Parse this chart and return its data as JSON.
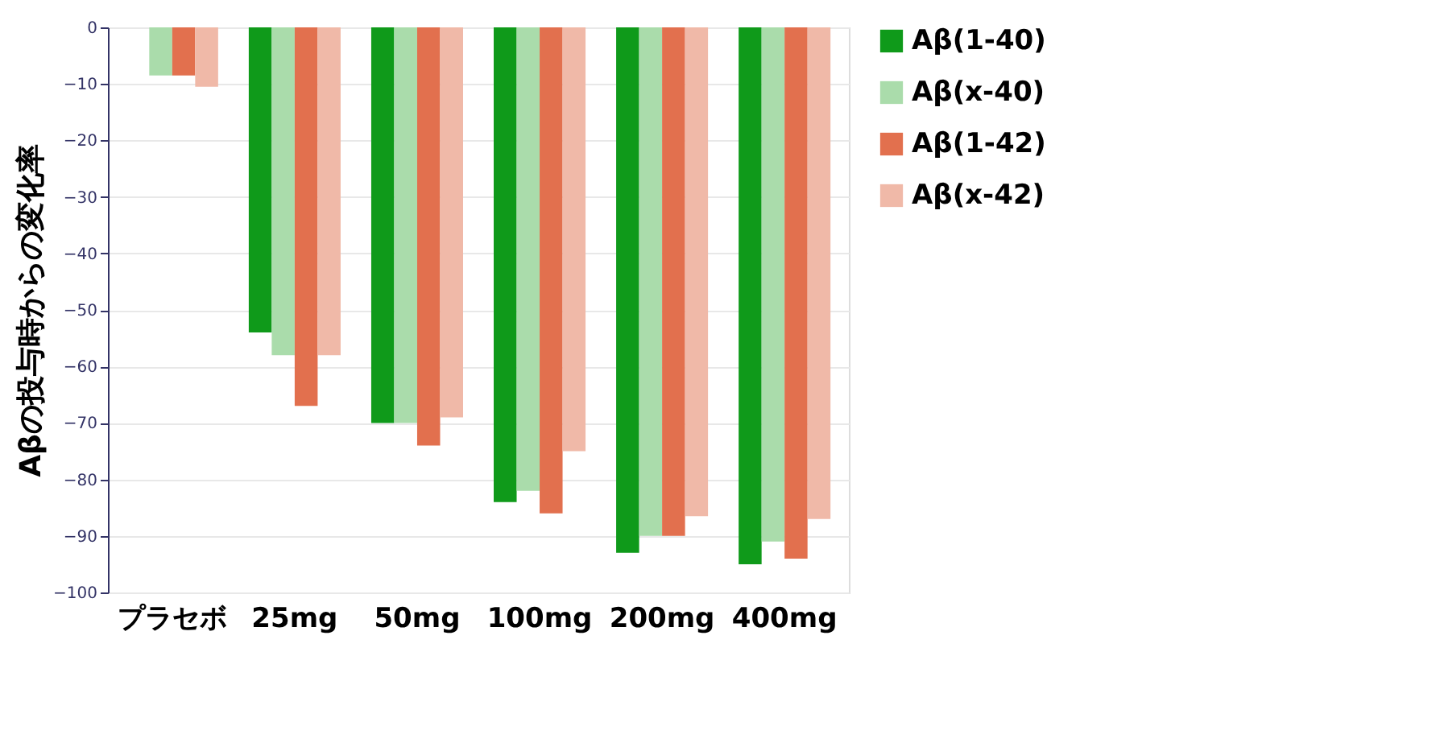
{
  "chart_data": {
    "type": "bar",
    "ylabel": "Aβの投与時からの変化率",
    "categories": [
      "プラセボ",
      "25mg",
      "50mg",
      "100mg",
      "200mg",
      "400mg"
    ],
    "series": [
      {
        "name": "Aβ(1-40)",
        "color": "#0f9a1a",
        "values": [
          null,
          -54,
          -70,
          -84,
          -93,
          -95
        ]
      },
      {
        "name": "Aβ(x-40)",
        "color": "#aadcab",
        "values": [
          -8.5,
          -58,
          -70,
          -82,
          -90,
          -91
        ]
      },
      {
        "name": "Aβ(1-42)",
        "color": "#e2704e",
        "values": [
          -8.5,
          -67,
          -74,
          -86,
          -90,
          -94
        ]
      },
      {
        "name": "Aβ(x-42)",
        "color": "#f0b9a8",
        "values": [
          -10.5,
          -58,
          -69,
          -75,
          -86.5,
          -87
        ]
      }
    ],
    "ylim": [
      -100,
      0
    ],
    "yticks": [
      0,
      -10,
      -20,
      -30,
      -40,
      -50,
      -60,
      -70,
      -80,
      -90,
      -100
    ],
    "grid": "y",
    "legend": "right"
  }
}
